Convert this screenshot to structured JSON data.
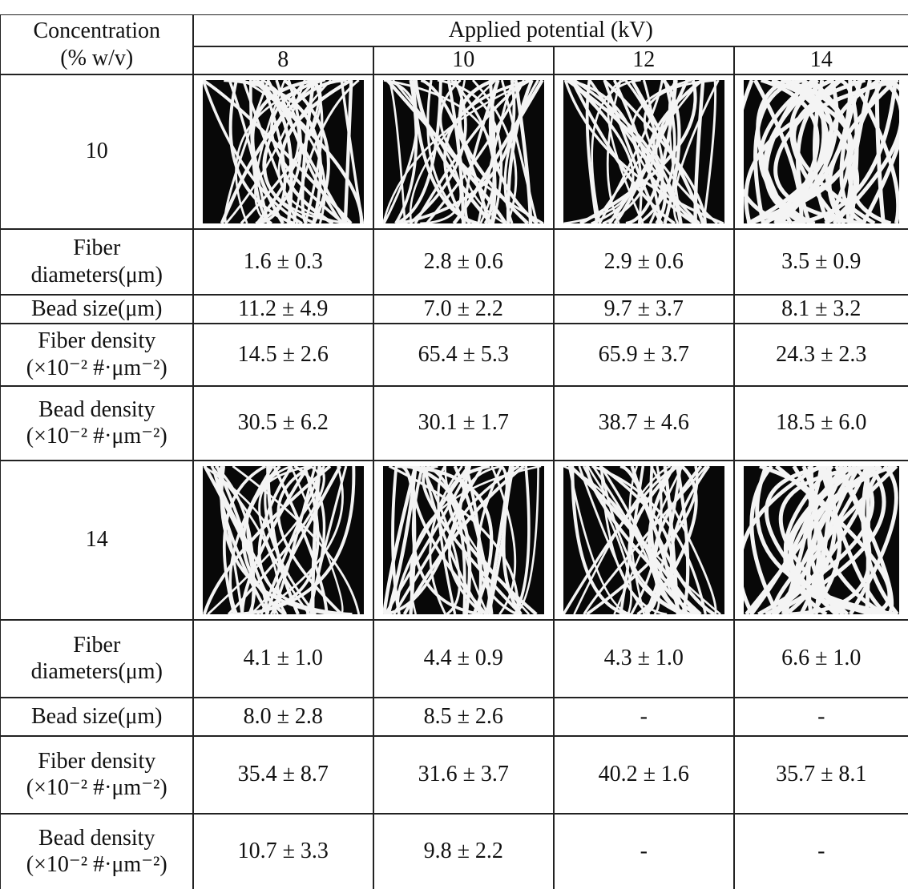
{
  "table": {
    "corner": [
      "Concentration",
      "(% w/v)"
    ],
    "potential_header": "Applied potential (kV)",
    "potentials": [
      "8",
      "10",
      "12",
      "14"
    ],
    "groups": [
      {
        "concentration": "10",
        "rows": [
          {
            "label": [
              "Fiber",
              "diameters(μm)"
            ],
            "cells": [
              "1.6 ± 0.3",
              "2.8 ± 0.6",
              "2.9 ± 0.6",
              "3.5 ± 0.9"
            ]
          },
          {
            "label": [
              "Bead size(μm)"
            ],
            "cells": [
              "11.2 ± 4.9",
              "7.0 ± 2.2",
              "9.7 ± 3.7",
              "8.1 ± 3.2"
            ]
          },
          {
            "label": [
              "Fiber density",
              "(×10⁻² #·μm⁻²)"
            ],
            "cells": [
              "14.5 ± 2.6",
              "65.4 ± 5.3",
              "65.9 ± 3.7",
              "24.3 ± 2.3"
            ]
          },
          {
            "label": [
              "Bead density",
              "(×10⁻² #·μm⁻²)"
            ],
            "cells": [
              "30.5 ± 6.2",
              "30.1 ± 1.7",
              "38.7 ± 4.6",
              "18.5 ± 6.0"
            ]
          }
        ]
      },
      {
        "concentration": "14",
        "rows": [
          {
            "label": [
              "Fiber",
              "diameters(μm)"
            ],
            "cells": [
              "4.1 ± 1.0",
              "4.4 ± 0.9",
              "4.3 ± 1.0",
              "6.6 ± 1.0"
            ]
          },
          {
            "label": [
              "Bead size(μm)"
            ],
            "cells": [
              "8.0 ± 2.8",
              "8.5 ± 2.6",
              "-",
              "-"
            ]
          },
          {
            "label": [
              "Fiber density",
              "(×10⁻² #·μm⁻²)"
            ],
            "cells": [
              "35.4 ± 8.7",
              "31.6 ± 3.7",
              "40.2 ± 1.6",
              "35.7 ± 8.1"
            ]
          },
          {
            "label": [
              "Bead density",
              "(×10⁻² #·μm⁻²)"
            ],
            "cells": [
              "10.7 ± 3.3",
              "9.8 ± 2.2",
              "-",
              "-"
            ]
          }
        ]
      }
    ]
  }
}
